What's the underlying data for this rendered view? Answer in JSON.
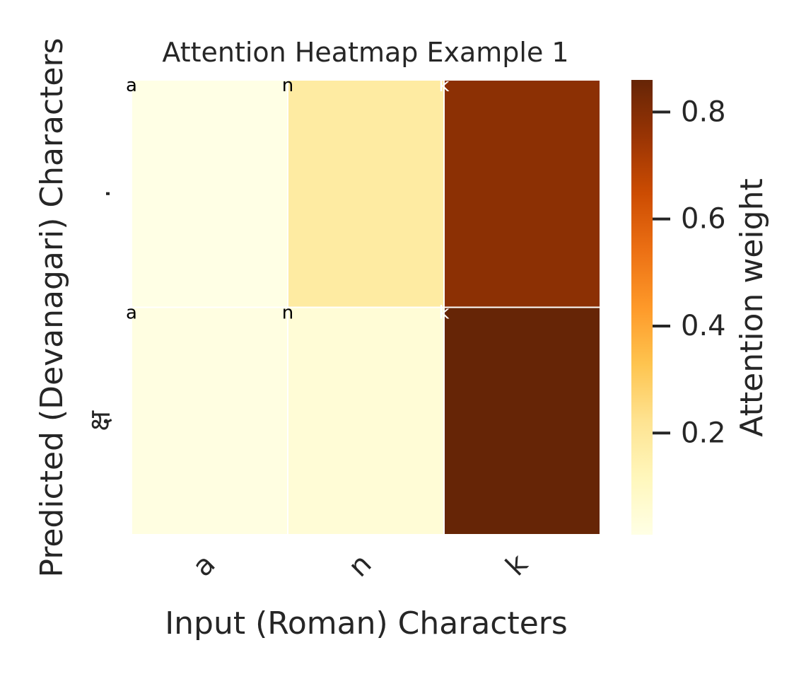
{
  "chart_data": {
    "type": "heatmap",
    "title": "Attention  Heatmap  Example  1",
    "xlabel": "Input (Roman) Characters",
    "ylabel": "Predicted  (Devanagari)  Characters",
    "x_tick_labels": [
      "a",
      "n",
      "k"
    ],
    "y_tick_labels": [
      ".",
      "क्ष"
    ],
    "values": [
      [
        0.01,
        0.18,
        0.78
      ],
      [
        0.02,
        0.05,
        0.86
      ]
    ],
    "cell_annotations": [
      [
        "a",
        "n",
        "k"
      ],
      [
        "a",
        "n",
        "k"
      ]
    ],
    "colorbar": {
      "label": "Attention weight",
      "range": [
        0.01,
        0.86
      ],
      "ticks": [
        0.2,
        0.4,
        0.6,
        0.8
      ],
      "tick_labels": [
        "0.2",
        "0.4",
        "0.6",
        "0.8"
      ],
      "colormap": "YlOrBr",
      "colormap_stops": [
        "#ffffe5",
        "#fff7bc",
        "#fee391",
        "#fec44f",
        "#fe9929",
        "#ec7014",
        "#cc4c02",
        "#993404",
        "#662506"
      ]
    },
    "grid_line_color": "#ffffff"
  }
}
